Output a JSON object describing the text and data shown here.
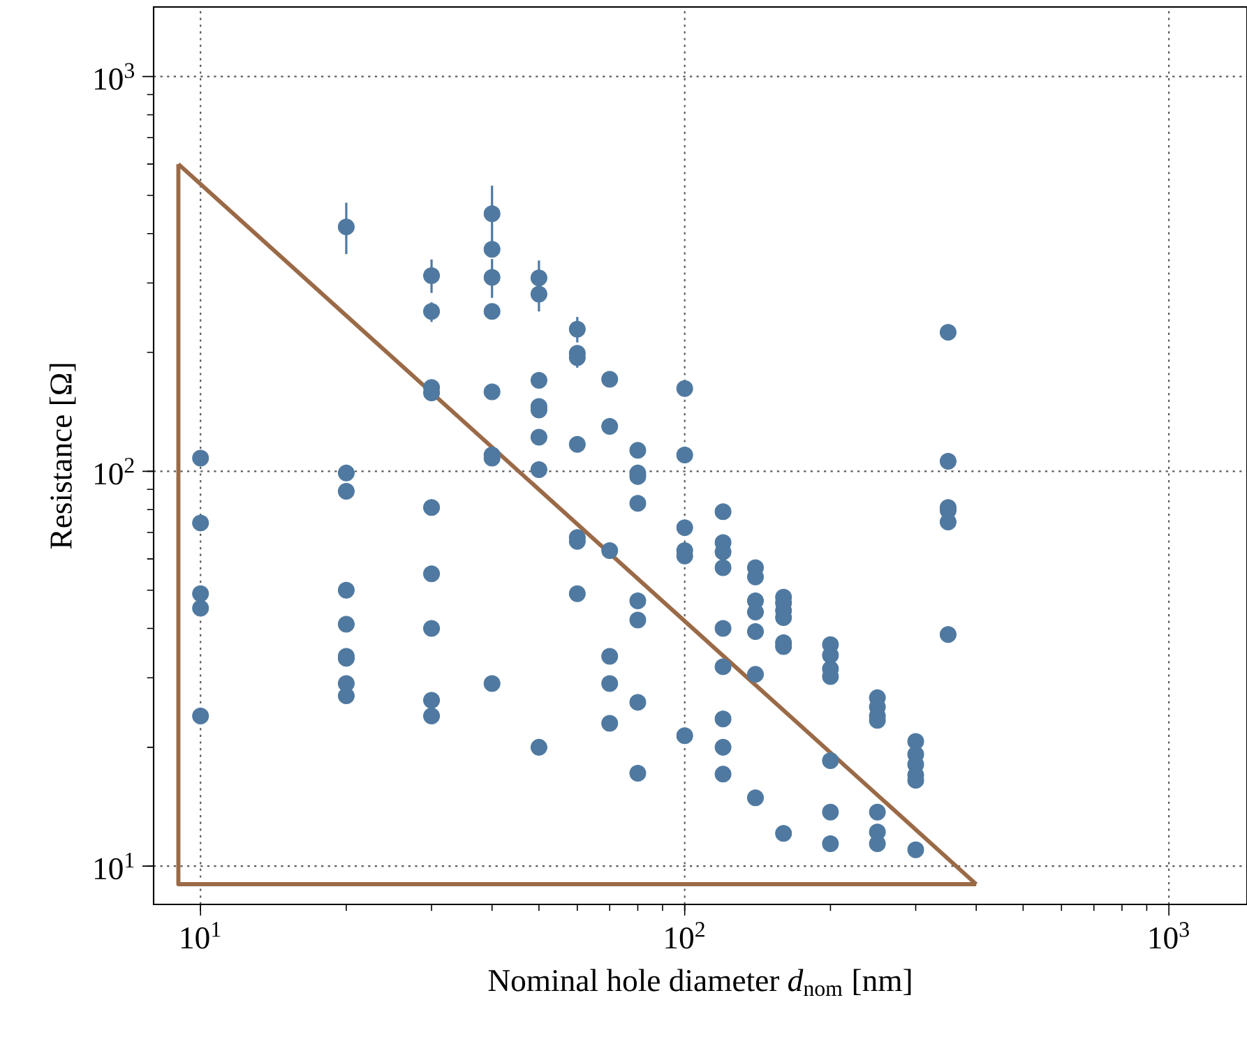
{
  "chart_data": {
    "type": "scatter",
    "xlabel": "Nominal hole diameter *d*$_{nom}$ [nm]",
    "ylabel": "Resistance [Ω]",
    "log": "xy",
    "grid": true,
    "xlim": [
      8,
      1450
    ],
    "ylim": [
      8,
      1500
    ],
    "xticks": [
      {
        "value": 10,
        "label": "10$^{1}$"
      },
      {
        "value": 100,
        "label": "10$^{2}$"
      },
      {
        "value": 1000,
        "label": "10$^{3}$"
      }
    ],
    "yticks": [
      {
        "value": 10,
        "label": "10$^{1}$"
      },
      {
        "value": 100,
        "label": "10$^{2}$"
      },
      {
        "value": 1000,
        "label": "10$^{3}$"
      }
    ],
    "series": [
      {
        "type": "scatter",
        "color": "#4f79a0",
        "marker": "circle",
        "x": [
          10,
          10,
          10,
          10,
          10,
          20,
          20,
          20,
          20,
          20,
          20,
          20,
          20,
          20,
          30,
          30,
          30,
          30,
          30,
          30,
          30,
          30,
          30,
          40,
          40,
          40,
          40,
          40,
          40,
          40,
          40,
          50,
          50,
          50,
          50,
          50,
          50,
          50,
          50,
          60,
          60,
          60,
          60,
          60,
          60,
          60,
          70,
          70,
          70,
          70,
          70,
          70,
          80,
          80,
          80,
          80,
          80,
          80,
          80,
          80,
          100,
          100,
          100,
          100,
          100,
          100,
          120,
          120,
          120,
          120,
          120,
          120,
          120,
          120,
          120,
          140,
          140,
          140,
          140,
          140,
          140,
          140,
          160,
          160,
          160,
          160,
          160,
          160,
          160,
          200,
          200,
          200,
          200,
          200,
          200,
          200,
          250,
          250,
          250,
          250,
          250,
          250,
          250,
          300,
          300,
          300,
          300,
          300,
          300,
          350,
          350,
          350,
          350,
          350,
          350
        ],
        "values": [
          108,
          74,
          49,
          45,
          24,
          416,
          99,
          89,
          50,
          41,
          34,
          33.6,
          29,
          27,
          313,
          254,
          163,
          158,
          81,
          55,
          40,
          26.3,
          24,
          449,
          365,
          310,
          254,
          159,
          110,
          108,
          29,
          309,
          281,
          170,
          146,
          143,
          122,
          101,
          20,
          229,
          199,
          194,
          117,
          68,
          66.5,
          49,
          171,
          130,
          63,
          34,
          29,
          23,
          113,
          99,
          97,
          83,
          47,
          42,
          26,
          17.2,
          162,
          110,
          72,
          63,
          61,
          21.4,
          79,
          66,
          62.5,
          57,
          40,
          32,
          23.6,
          20,
          17.1,
          57,
          54,
          47,
          44,
          39.3,
          30.6,
          14.9,
          48,
          46.4,
          44.4,
          42.6,
          36.8,
          36,
          12.1,
          36.4,
          34.2,
          31.6,
          30.2,
          18.5,
          13.7,
          11.4,
          26.7,
          25.3,
          24,
          23.4,
          13.7,
          12.2,
          11.4,
          20.7,
          19.2,
          18.1,
          17,
          16.5,
          11,
          225,
          106,
          81,
          79.6,
          74.4,
          38.6
        ],
        "errors": [
          null,
          null,
          null,
          null,
          null,
          [
            355,
            479
          ],
          null,
          null,
          null,
          null,
          null,
          null,
          null,
          null,
          [
            283,
            344
          ],
          [
            239,
            268
          ],
          null,
          null,
          null,
          null,
          null,
          null,
          null,
          [
            380,
            529
          ],
          null,
          [
            275,
            345
          ],
          null,
          null,
          null,
          null,
          null,
          [
            290,
            342
          ],
          [
            254,
            300
          ],
          null,
          null,
          null,
          null,
          null,
          null,
          [
            212,
            246
          ],
          null,
          [
            183,
            205
          ],
          null,
          null,
          null,
          null,
          null,
          null,
          null,
          null,
          null,
          null,
          null,
          null,
          null,
          null,
          null,
          null,
          null,
          null,
          null,
          null,
          null,
          null,
          null,
          null,
          null,
          null,
          null,
          null,
          null,
          null,
          null,
          null,
          null,
          null,
          null,
          null,
          null,
          null,
          null,
          null,
          null,
          null,
          null,
          null,
          null,
          null,
          null,
          null,
          null,
          null,
          null,
          null,
          null,
          null,
          null,
          null,
          null,
          null,
          null,
          null,
          null,
          null,
          null,
          null,
          null,
          null,
          null,
          null,
          null,
          null,
          null,
          null,
          null
        ]
      },
      {
        "type": "line",
        "color": "#9a6a47",
        "marker": "none",
        "line_style": "solid",
        "x": [
          9,
          400
        ],
        "values": [
          600,
          9
        ]
      },
      {
        "type": "line",
        "color": "#9a6a47",
        "marker": "none",
        "line_style": "solid",
        "x": [
          9,
          9,
          400
        ],
        "values": [
          600,
          9,
          9
        ]
      }
    ]
  }
}
